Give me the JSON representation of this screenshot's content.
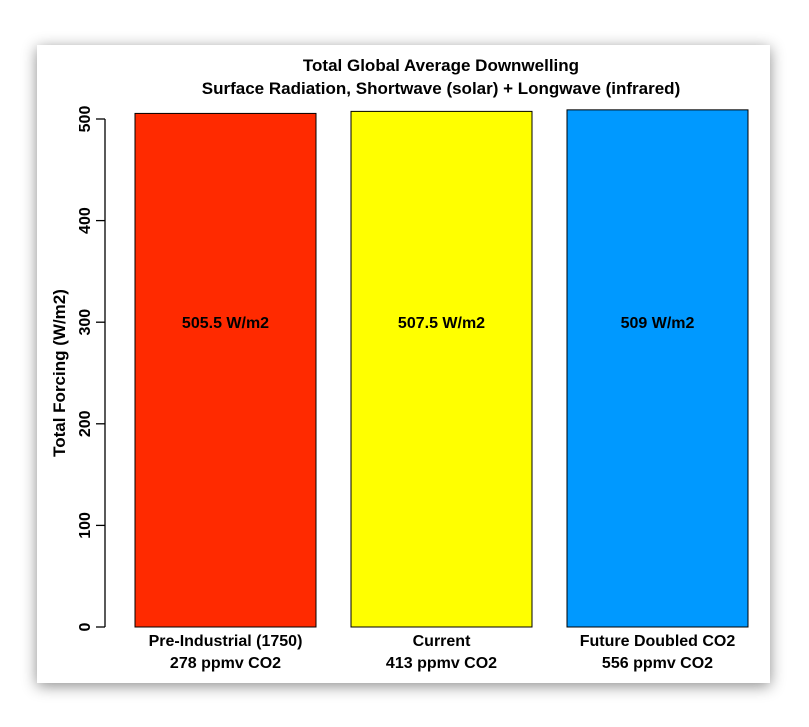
{
  "chart_data": {
    "type": "bar",
    "title": "Total Global Average Downwelling",
    "subtitle": "Surface Radiation, Shortwave (solar) + Longwave (infrared)",
    "xlabel": "",
    "ylabel": "Total Forcing (W/m2)",
    "ylim": [
      0,
      500
    ],
    "yticks": [
      0,
      100,
      200,
      300,
      400,
      500
    ],
    "grid": false,
    "categories": [
      {
        "line1": "Pre-Industrial (1750)",
        "line2": "278 ppmv CO2"
      },
      {
        "line1": "Current",
        "line2": "413 ppmv CO2"
      },
      {
        "line1": "Future Doubled CO2",
        "line2": "556 ppmv CO2"
      }
    ],
    "values": [
      505.5,
      507.5,
      509
    ],
    "data_labels": [
      "505.5 W/m2",
      "507.5 W/m2",
      "509 W/m2"
    ],
    "colors": [
      "#ff2a00",
      "#ffff00",
      "#0099ff"
    ],
    "label_value": 300
  }
}
